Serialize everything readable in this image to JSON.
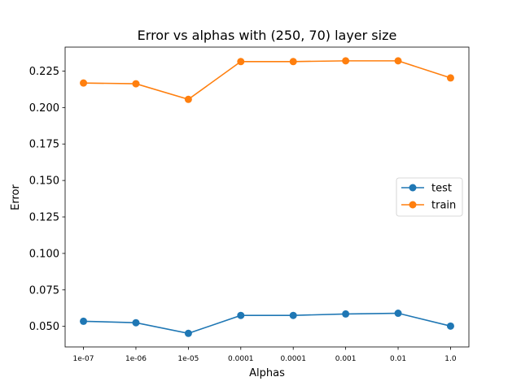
{
  "chart_data": {
    "type": "line",
    "title": "Error vs alphas with (250, 70) layer size",
    "xlabel": "Alphas",
    "ylabel": "Error",
    "categories": [
      "1e-07",
      "1e-06",
      "1e-05",
      "0.0001",
      "0.0001",
      "0.001",
      "0.01",
      "1.0"
    ],
    "series": [
      {
        "name": "test",
        "color": "#1f77b4",
        "values": [
          0.0535,
          0.0525,
          0.0452,
          0.0575,
          0.0575,
          0.0585,
          0.059,
          0.0502
        ]
      },
      {
        "name": "train",
        "color": "#ff7f0e",
        "values": [
          0.2168,
          0.2163,
          0.2056,
          0.2315,
          0.2315,
          0.232,
          0.232,
          0.2203
        ]
      }
    ],
    "ylim": [
      0.0359,
      0.2414
    ],
    "yticks": [
      "0.050",
      "0.075",
      "0.100",
      "0.125",
      "0.150",
      "0.175",
      "0.200",
      "0.225"
    ],
    "ytick_values": [
      0.05,
      0.075,
      0.1,
      0.125,
      0.15,
      0.175,
      0.2,
      0.225
    ],
    "grid": false,
    "legend_position": "center-right"
  }
}
